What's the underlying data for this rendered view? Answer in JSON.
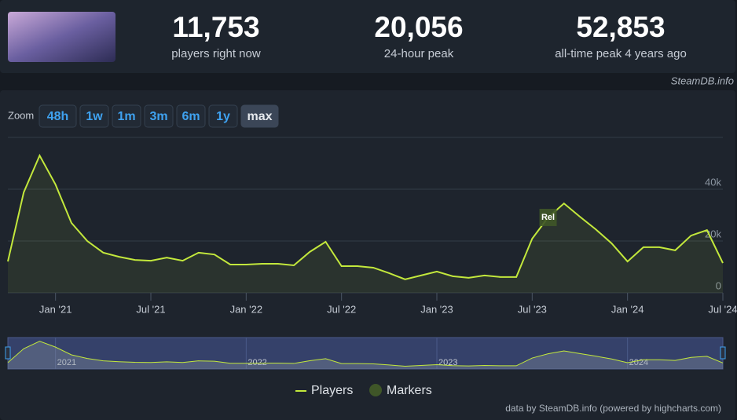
{
  "header": {
    "stats": [
      {
        "value": "11,753",
        "label": "players right now"
      },
      {
        "value": "20,056",
        "label": "24-hour peak"
      },
      {
        "value": "52,853",
        "label": "all-time peak 4 years ago"
      }
    ],
    "source": "SteamDB.info"
  },
  "zoom": {
    "label": "Zoom",
    "buttons": [
      "48h",
      "1w",
      "1m",
      "3m",
      "6m",
      "1y",
      "max"
    ],
    "active": "max"
  },
  "chart_data": {
    "type": "line",
    "x": [
      "2020-10",
      "2020-11",
      "2020-12",
      "2021-01",
      "2021-02",
      "2021-03",
      "2021-04",
      "2021-05",
      "2021-06",
      "2021-07",
      "2021-08",
      "2021-09",
      "2021-10",
      "2021-11",
      "2021-12",
      "2022-01",
      "2022-02",
      "2022-03",
      "2022-04",
      "2022-05",
      "2022-06",
      "2022-07",
      "2022-08",
      "2022-09",
      "2022-10",
      "2022-11",
      "2022-12",
      "2023-01",
      "2023-02",
      "2023-03",
      "2023-04",
      "2023-05",
      "2023-06",
      "2023-07",
      "2023-08",
      "2023-09",
      "2023-10",
      "2023-11",
      "2023-12",
      "2024-01",
      "2024-02",
      "2024-03",
      "2024-04",
      "2024-05",
      "2024-06",
      "2024-07"
    ],
    "series": [
      {
        "name": "Players",
        "color": "#c3e83c",
        "values": [
          12100,
          38800,
          53000,
          41800,
          27000,
          20000,
          15500,
          13900,
          12700,
          12400,
          13600,
          12400,
          15500,
          14800,
          10900,
          10900,
          11200,
          11200,
          10600,
          15800,
          19700,
          10300,
          10300,
          9700,
          7600,
          5200,
          6700,
          8200,
          6400,
          5800,
          6700,
          6100,
          6100,
          20900,
          29100,
          34500,
          29400,
          24500,
          19100,
          12100,
          17600,
          17600,
          16400,
          22100,
          24200,
          11500
        ]
      }
    ],
    "ylim": [
      0,
      60000
    ],
    "yticks": [
      {
        "value": 0,
        "label": "0"
      },
      {
        "value": 20000,
        "label": "20k"
      },
      {
        "value": 40000,
        "label": "40k"
      }
    ],
    "xticks": [
      {
        "value": "2021-01",
        "label": "Jan '21"
      },
      {
        "value": "2021-07",
        "label": "Jul '21"
      },
      {
        "value": "2022-01",
        "label": "Jan '22"
      },
      {
        "value": "2022-07",
        "label": "Jul '22"
      },
      {
        "value": "2023-01",
        "label": "Jan '23"
      },
      {
        "value": "2023-07",
        "label": "Jul '23"
      },
      {
        "value": "2024-01",
        "label": "Jan '24"
      },
      {
        "value": "2024-07",
        "label": "Jul '24"
      }
    ],
    "grid": true,
    "markers": {
      "name": "Markers",
      "color": "#3f5628",
      "items": [
        {
          "x": "2023-08",
          "label": "Rel"
        }
      ]
    },
    "navigator_ticks": [
      {
        "value": "2021-01",
        "label": "2021"
      },
      {
        "value": "2022-01",
        "label": "2022"
      },
      {
        "value": "2023-01",
        "label": "2023"
      },
      {
        "value": "2024-01",
        "label": "2024"
      }
    ]
  },
  "footer": "data by SteamDB.info (powered by highcharts.com)"
}
